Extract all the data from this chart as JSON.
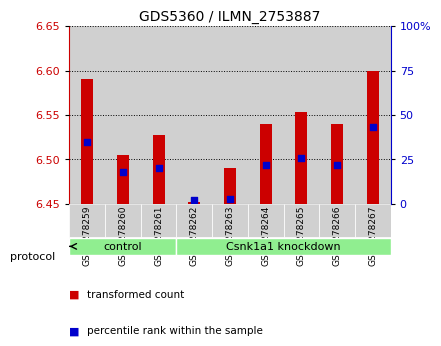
{
  "title": "GDS5360 / ILMN_2753887",
  "samples": [
    "GSM1278259",
    "GSM1278260",
    "GSM1278261",
    "GSM1278262",
    "GSM1278263",
    "GSM1278264",
    "GSM1278265",
    "GSM1278266",
    "GSM1278267"
  ],
  "transformed_count": [
    6.59,
    6.505,
    6.528,
    6.452,
    6.49,
    6.54,
    6.553,
    6.54,
    6.6
  ],
  "percentile_rank": [
    35,
    18,
    20,
    2,
    3,
    22,
    26,
    22,
    43
  ],
  "baseline": 6.45,
  "ylim_left": [
    6.45,
    6.65
  ],
  "ylim_right": [
    0,
    100
  ],
  "yticks_left": [
    6.45,
    6.5,
    6.55,
    6.6,
    6.65
  ],
  "yticks_right": [
    0,
    25,
    50,
    75,
    100
  ],
  "ytick_labels_right": [
    "0",
    "25",
    "50",
    "75",
    "100%"
  ],
  "groups": [
    {
      "label": "control",
      "indices": [
        0,
        1,
        2
      ]
    },
    {
      "label": "Csnk1a1 knockdown",
      "indices": [
        3,
        4,
        5,
        6,
        7,
        8
      ]
    }
  ],
  "bar_color": "#CC0000",
  "percentile_color": "#0000CC",
  "bar_width": 0.6,
  "plot_bg": "#ffffff",
  "col_bg": "#d0d0d0",
  "left_axis_color": "#CC0000",
  "right_axis_color": "#0000CC",
  "green_color": "#90EE90",
  "protocol_label": "protocol",
  "legend_items": [
    "transformed count",
    "percentile rank within the sample"
  ]
}
